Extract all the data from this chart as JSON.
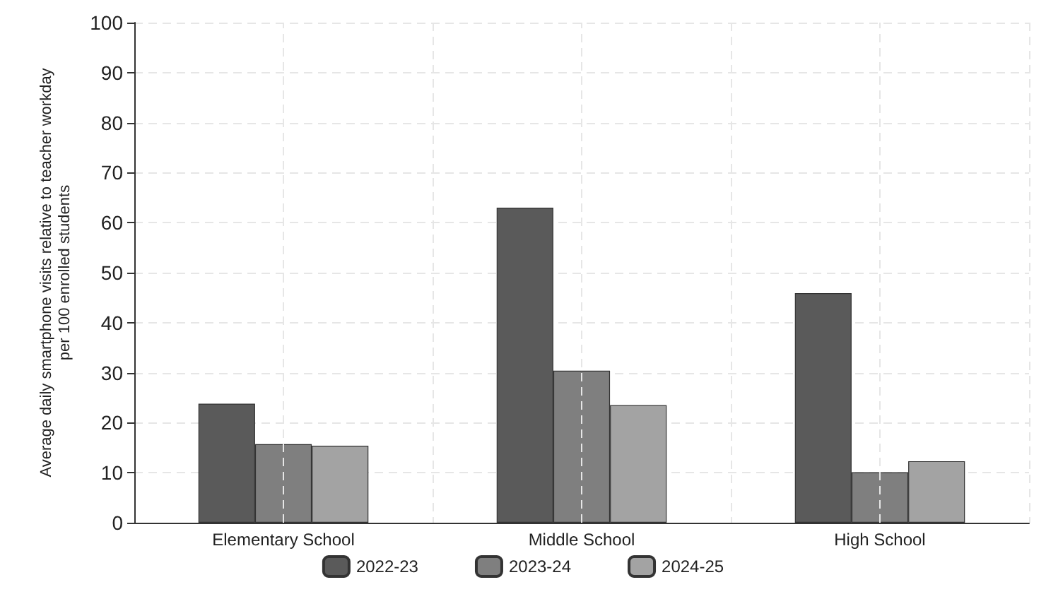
{
  "chart_data": {
    "type": "bar",
    "ylabel": "Average daily smartphone visits relative to teacher workday\nper 100 enrolled students",
    "categories": [
      "Elementary School",
      "Middle School",
      "High School"
    ],
    "series": [
      {
        "name": "2022-23",
        "color": "#5a5a5a",
        "values": [
          23.8,
          63.0,
          45.9
        ]
      },
      {
        "name": "2023-24",
        "color": "#7f7f7f",
        "values": [
          15.7,
          30.4,
          10.1
        ]
      },
      {
        "name": "2024-25",
        "color": "#a3a3a3",
        "values": [
          15.4,
          23.5,
          12.3
        ]
      }
    ],
    "ylim": [
      0,
      100
    ],
    "yticks": [
      0,
      10,
      20,
      30,
      40,
      50,
      60,
      70,
      80,
      90,
      100
    ],
    "grid": true,
    "legend": "bottom"
  }
}
